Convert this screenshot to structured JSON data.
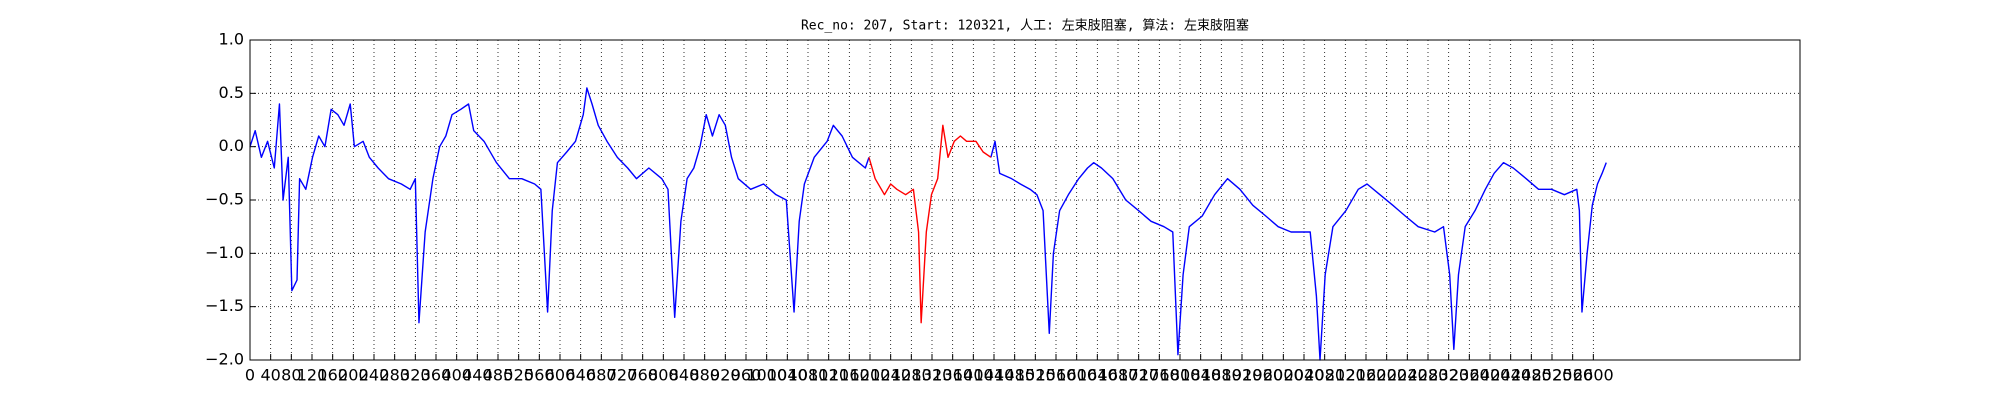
{
  "chart_data": {
    "type": "line",
    "title": "Rec_no: 207, Start: 120321, 人工: 左束肢阻塞, 算法: 左束肢阻塞",
    "x": [
      0,
      10,
      22,
      34,
      47,
      57,
      64,
      74,
      81,
      91,
      96,
      108,
      121,
      133,
      145,
      157,
      170,
      182,
      194,
      202,
      219,
      231,
      248,
      268,
      293,
      310,
      320,
      327,
      339,
      354,
      367,
      379,
      391,
      408,
      423,
      433,
      453,
      477,
      502,
      526,
      551,
      563,
      576,
      585,
      595,
      613,
      630,
      645,
      652,
      662,
      674,
      691,
      711,
      731,
      748,
      772,
      797,
      809,
      822,
      834,
      846,
      859,
      871,
      883,
      895,
      908,
      920,
      932,
      945,
      969,
      994,
      1018,
      1038,
      1053,
      1063,
      1073,
      1092,
      1117,
      1129,
      1146,
      1166,
      1191,
      1198,
      1210,
      1228,
      1240,
      1252,
      1269,
      1284,
      1294,
      1299,
      1309,
      1319,
      1331,
      1341,
      1351,
      1363,
      1375,
      1387,
      1405,
      1419,
      1434,
      1442,
      1451,
      1474,
      1491,
      1510,
      1523,
      1535,
      1547,
      1555,
      1567,
      1584,
      1604,
      1621,
      1633,
      1648,
      1670,
      1695,
      1720,
      1744,
      1769,
      1786,
      1796,
      1806,
      1818,
      1843,
      1867,
      1892,
      1916,
      1941,
      1966,
      1990,
      2015,
      2052,
      2064,
      2071,
      2081,
      2096,
      2121,
      2145,
      2162,
      2187,
      2212,
      2236,
      2261,
      2293,
      2310,
      2322,
      2330,
      2339,
      2352,
      2371,
      2391,
      2408,
      2426,
      2445,
      2470,
      2494,
      2519,
      2544,
      2568,
      2573,
      2578,
      2588,
      2598,
      2608,
      2617,
      2625
    ],
    "series": [
      {
        "name": "blue",
        "color": "#0000ff",
        "values": [
          0.0,
          0.15,
          -0.1,
          0.05,
          -0.2,
          0.4,
          -0.5,
          -0.1,
          -1.35,
          -1.25,
          -0.3,
          -0.4,
          -0.1,
          0.1,
          0.0,
          0.35,
          0.3,
          0.2,
          0.4,
          0.0,
          0.05,
          -0.1,
          -0.2,
          -0.3,
          -0.35,
          -0.4,
          -0.3,
          -1.65,
          -0.8,
          -0.3,
          0.0,
          0.1,
          0.3,
          0.35,
          0.4,
          0.15,
          0.05,
          -0.15,
          -0.3,
          -0.3,
          -0.35,
          -0.4,
          -1.55,
          -0.6,
          -0.15,
          -0.05,
          0.05,
          0.3,
          0.55,
          0.4,
          0.2,
          0.05,
          -0.1,
          -0.2,
          -0.3,
          -0.2,
          -0.3,
          -0.4,
          -1.6,
          -0.7,
          -0.3,
          -0.2,
          0.0,
          0.3,
          0.1,
          0.3,
          0.2,
          -0.1,
          -0.3,
          -0.4,
          -0.35,
          -0.45,
          -0.5,
          -1.55,
          -0.7,
          -0.35,
          -0.1,
          0.05,
          0.2,
          0.1,
          -0.1,
          -0.2,
          -0.1,
          null,
          null,
          null,
          null,
          null,
          null,
          null,
          null,
          null,
          null,
          null,
          null,
          null,
          null,
          null,
          null,
          null,
          null,
          -0.1,
          0.05,
          -0.25,
          -0.3,
          -0.35,
          -0.4,
          -0.45,
          -0.6,
          -1.75,
          -1.0,
          -0.6,
          -0.45,
          -0.3,
          -0.2,
          -0.15,
          -0.2,
          -0.3,
          -0.5,
          -0.6,
          -0.7,
          -0.75,
          -0.8,
          -1.95,
          -1.2,
          -0.75,
          -0.65,
          -0.45,
          -0.3,
          -0.4,
          -0.55,
          -0.65,
          -0.75,
          -0.8,
          -0.8,
          -1.4,
          -2.0,
          -1.2,
          -0.75,
          -0.6,
          -0.4,
          -0.35,
          -0.45,
          -0.55,
          -0.65,
          -0.75,
          -0.8,
          -0.75,
          -1.2,
          -1.9,
          -1.2,
          -0.75,
          -0.6,
          -0.4,
          -0.25,
          -0.15,
          -0.2,
          -0.3,
          -0.4,
          -0.4,
          -0.45,
          -0.4,
          -0.6,
          -1.55,
          -1.0,
          -0.55,
          -0.35,
          -0.25,
          -0.15
        ]
      },
      {
        "name": "red",
        "color": "#ff0000",
        "values": [
          null,
          null,
          null,
          null,
          null,
          null,
          null,
          null,
          null,
          null,
          null,
          null,
          null,
          null,
          null,
          null,
          null,
          null,
          null,
          null,
          null,
          null,
          null,
          null,
          null,
          null,
          null,
          null,
          null,
          null,
          null,
          null,
          null,
          null,
          null,
          null,
          null,
          null,
          null,
          null,
          null,
          null,
          null,
          null,
          null,
          null,
          null,
          null,
          null,
          null,
          null,
          null,
          null,
          null,
          null,
          null,
          null,
          null,
          null,
          null,
          null,
          null,
          null,
          null,
          null,
          null,
          null,
          null,
          null,
          null,
          null,
          null,
          null,
          null,
          null,
          null,
          null,
          null,
          null,
          null,
          null,
          null,
          -0.1,
          -0.3,
          -0.45,
          -0.35,
          -0.4,
          -0.45,
          -0.4,
          -0.8,
          -1.65,
          -0.8,
          -0.45,
          -0.3,
          0.2,
          -0.1,
          0.05,
          0.1,
          0.05,
          0.05,
          -0.05,
          -0.1,
          null,
          null,
          null,
          null,
          null,
          null,
          null,
          null,
          null,
          null,
          null,
          null,
          null,
          null,
          null,
          null,
          null,
          null,
          null,
          null,
          null,
          null,
          null,
          null,
          null,
          null,
          null,
          null,
          null,
          null,
          null,
          null,
          null,
          null,
          null,
          null,
          null,
          null,
          null,
          null,
          null,
          null,
          null,
          null,
          null,
          null,
          null,
          null,
          null,
          null,
          null,
          null,
          null,
          null,
          null,
          null,
          null,
          null,
          null,
          null,
          null,
          null,
          null,
          null,
          null,
          null,
          null
        ]
      }
    ],
    "xlim": [
      0,
      3000
    ],
    "xticks": [
      0,
      40,
      80,
      120,
      160,
      200,
      240,
      280,
      320,
      360,
      400,
      440,
      480,
      520,
      560,
      600,
      640,
      680,
      720,
      760,
      800,
      840,
      880,
      920,
      960,
      1000,
      1040,
      1080,
      1120,
      1160,
      1200,
      1240,
      1280,
      1320,
      1360,
      1400,
      1440,
      1480,
      1520,
      1560,
      1600,
      1640,
      1680,
      1720,
      1760,
      1800,
      1840,
      1880,
      1920,
      1960,
      2000,
      2040,
      2080,
      2120,
      2160,
      2200,
      2240,
      2280,
      2320,
      2360,
      2400,
      2440,
      2480,
      2520,
      2560,
      2600
    ],
    "ylim": [
      -2.0,
      1.0
    ],
    "yticks": [
      {
        "value": -2.0,
        "label": "−2.0"
      },
      {
        "value": -1.5,
        "label": "−1.5"
      },
      {
        "value": -1.0,
        "label": "−1.0"
      },
      {
        "value": -0.5,
        "label": "−0.5"
      },
      {
        "value": 0.0,
        "label": "0.0"
      },
      {
        "value": 0.5,
        "label": "0.5"
      },
      {
        "value": 1.0,
        "label": "1.0"
      }
    ],
    "grid": true
  }
}
